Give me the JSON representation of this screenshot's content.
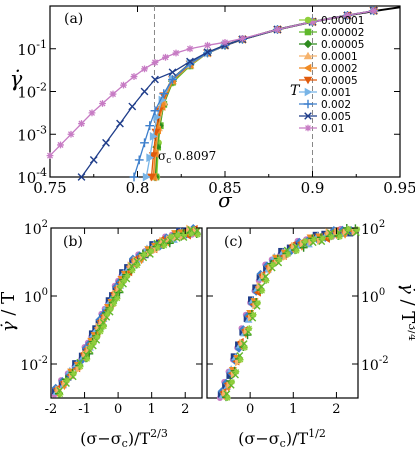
{
  "chart_data": [
    {
      "panel": "(a)",
      "type": "line",
      "xlabel": "σ",
      "ylabel": "γ̇",
      "xlim": [
        0.75,
        0.95
      ],
      "ylim_log10": [
        -4,
        0
      ],
      "y_scale": "log",
      "x_ticks": [
        "0.75",
        "0.8",
        "0.85",
        "0.9",
        "0.95"
      ],
      "y_ticks": [
        {
          "base": "10",
          "exp": "-4"
        },
        {
          "base": "10",
          "exp": "-3"
        },
        {
          "base": "10",
          "exp": "-2"
        },
        {
          "base": "10",
          "exp": "-1"
        }
      ],
      "dashed_vlines": [
        0.8097,
        0.9
      ],
      "annotation": {
        "symbol": "σ",
        "sub": "c",
        "value": "0.8097"
      },
      "legend_title": "T",
      "legend_position": "right",
      "fit_curve": {
        "color": "#000000",
        "points": [
          [
            0.8097,
            -4.0
          ],
          [
            0.811,
            -3.0
          ],
          [
            0.812,
            -2.6
          ],
          [
            0.815,
            -2.1
          ],
          [
            0.82,
            -1.7
          ],
          [
            0.83,
            -1.35
          ],
          [
            0.84,
            -1.1
          ],
          [
            0.85,
            -0.92
          ],
          [
            0.86,
            -0.78
          ],
          [
            0.88,
            -0.55
          ],
          [
            0.9,
            -0.37
          ],
          [
            0.92,
            -0.22
          ],
          [
            0.94,
            -0.09
          ],
          [
            0.95,
            -0.03
          ]
        ]
      },
      "series": [
        {
          "name": "0.00001",
          "color": "#8fcf3c",
          "marker": "circle",
          "points": [
            [
              0.811,
              -4.0
            ],
            [
              0.812,
              -3.2
            ],
            [
              0.813,
              -2.8
            ],
            [
              0.815,
              -2.3
            ],
            [
              0.82,
              -1.8
            ],
            [
              0.83,
              -1.4
            ],
            [
              0.84,
              -1.1
            ],
            [
              0.85,
              -0.92
            ],
            [
              0.86,
              -0.78
            ],
            [
              0.88,
              -0.55
            ],
            [
              0.9,
              -0.37
            ],
            [
              0.92,
              -0.22
            ],
            [
              0.935,
              -0.11
            ]
          ]
        },
        {
          "name": "0.00002",
          "color": "#5fb82c",
          "marker": "square",
          "points": [
            [
              0.8105,
              -4.0
            ],
            [
              0.8115,
              -3.3
            ],
            [
              0.813,
              -2.8
            ],
            [
              0.815,
              -2.3
            ],
            [
              0.82,
              -1.78
            ],
            [
              0.83,
              -1.4
            ],
            [
              0.84,
              -1.1
            ],
            [
              0.85,
              -0.92
            ],
            [
              0.86,
              -0.78
            ],
            [
              0.88,
              -0.55
            ],
            [
              0.9,
              -0.37
            ],
            [
              0.92,
              -0.22
            ],
            [
              0.935,
              -0.11
            ]
          ]
        },
        {
          "name": "0.00005",
          "color": "#2e8b1e",
          "marker": "diamond",
          "points": [
            [
              0.81,
              -4.0
            ],
            [
              0.811,
              -3.3
            ],
            [
              0.8125,
              -2.8
            ],
            [
              0.815,
              -2.3
            ],
            [
              0.82,
              -1.76
            ],
            [
              0.83,
              -1.38
            ],
            [
              0.84,
              -1.1
            ],
            [
              0.85,
              -0.92
            ],
            [
              0.86,
              -0.78
            ],
            [
              0.88,
              -0.55
            ],
            [
              0.9,
              -0.37
            ],
            [
              0.92,
              -0.22
            ],
            [
              0.935,
              -0.11
            ]
          ]
        },
        {
          "name": "0.0001",
          "color": "#f6b26b",
          "marker": "triangle-up",
          "points": [
            [
              0.8095,
              -4.0
            ],
            [
              0.8105,
              -3.4
            ],
            [
              0.812,
              -2.85
            ],
            [
              0.815,
              -2.25
            ],
            [
              0.82,
              -1.75
            ],
            [
              0.83,
              -1.38
            ],
            [
              0.84,
              -1.1
            ],
            [
              0.85,
              -0.92
            ],
            [
              0.86,
              -0.78
            ],
            [
              0.88,
              -0.55
            ],
            [
              0.9,
              -0.37
            ],
            [
              0.92,
              -0.22
            ],
            [
              0.935,
              -0.11
            ]
          ]
        },
        {
          "name": "0.0002",
          "color": "#f08a24",
          "marker": "triangle-left",
          "points": [
            [
              0.809,
              -4.0
            ],
            [
              0.81,
              -3.45
            ],
            [
              0.8115,
              -2.9
            ],
            [
              0.814,
              -2.35
            ],
            [
              0.82,
              -1.74
            ],
            [
              0.83,
              -1.37
            ],
            [
              0.84,
              -1.1
            ],
            [
              0.85,
              -0.92
            ],
            [
              0.86,
              -0.78
            ],
            [
              0.88,
              -0.55
            ],
            [
              0.9,
              -0.37
            ],
            [
              0.92,
              -0.22
            ],
            [
              0.935,
              -0.11
            ]
          ]
        },
        {
          "name": "0.0005",
          "color": "#e05a0c",
          "marker": "triangle-down",
          "points": [
            [
              0.808,
              -4.0
            ],
            [
              0.809,
              -3.5
            ],
            [
              0.8105,
              -2.95
            ],
            [
              0.8125,
              -2.45
            ],
            [
              0.815,
              -2.1
            ],
            [
              0.82,
              -1.72
            ],
            [
              0.83,
              -1.36
            ],
            [
              0.84,
              -1.1
            ],
            [
              0.85,
              -0.92
            ],
            [
              0.86,
              -0.78
            ],
            [
              0.88,
              -0.55
            ],
            [
              0.9,
              -0.37
            ],
            [
              0.92,
              -0.22
            ],
            [
              0.935,
              -0.11
            ]
          ]
        },
        {
          "name": "0.001",
          "color": "#78b4e6",
          "marker": "triangle-right",
          "points": [
            [
              0.805,
              -4.0
            ],
            [
              0.807,
              -3.55
            ],
            [
              0.809,
              -3.05
            ],
            [
              0.811,
              -2.6
            ],
            [
              0.814,
              -2.2
            ],
            [
              0.82,
              -1.7
            ],
            [
              0.83,
              -1.35
            ],
            [
              0.84,
              -1.1
            ],
            [
              0.85,
              -0.92
            ],
            [
              0.86,
              -0.78
            ],
            [
              0.88,
              -0.55
            ],
            [
              0.9,
              -0.37
            ],
            [
              0.92,
              -0.22
            ],
            [
              0.935,
              -0.11
            ]
          ]
        },
        {
          "name": "0.002",
          "color": "#3d7fcc",
          "marker": "plus",
          "points": [
            [
              0.798,
              -4.0
            ],
            [
              0.801,
              -3.6
            ],
            [
              0.804,
              -3.2
            ],
            [
              0.807,
              -2.8
            ],
            [
              0.81,
              -2.45
            ],
            [
              0.815,
              -2.05
            ],
            [
              0.82,
              -1.72
            ],
            [
              0.83,
              -1.35
            ],
            [
              0.84,
              -1.1
            ],
            [
              0.85,
              -0.92
            ],
            [
              0.86,
              -0.78
            ],
            [
              0.88,
              -0.55
            ],
            [
              0.9,
              -0.37
            ],
            [
              0.92,
              -0.22
            ],
            [
              0.935,
              -0.11
            ]
          ]
        },
        {
          "name": "0.005",
          "color": "#1f3d8a",
          "marker": "cross",
          "points": [
            [
              0.768,
              -4.0
            ],
            [
              0.775,
              -3.6
            ],
            [
              0.782,
              -3.2
            ],
            [
              0.79,
              -2.75
            ],
            [
              0.797,
              -2.35
            ],
            [
              0.804,
              -2.0
            ],
            [
              0.81,
              -1.72
            ],
            [
              0.82,
              -1.55
            ],
            [
              0.83,
              -1.3
            ],
            [
              0.84,
              -1.08
            ],
            [
              0.85,
              -0.92
            ],
            [
              0.86,
              -0.78
            ],
            [
              0.88,
              -0.55
            ],
            [
              0.9,
              -0.37
            ],
            [
              0.92,
              -0.22
            ],
            [
              0.935,
              -0.11
            ]
          ]
        },
        {
          "name": "0.01",
          "color": "#c77bc4",
          "marker": "star",
          "points": [
            [
              0.75,
              -3.5
            ],
            [
              0.756,
              -3.25
            ],
            [
              0.762,
              -3.0
            ],
            [
              0.768,
              -2.75
            ],
            [
              0.774,
              -2.5
            ],
            [
              0.78,
              -2.28
            ],
            [
              0.786,
              -2.06
            ],
            [
              0.792,
              -1.85
            ],
            [
              0.798,
              -1.65
            ],
            [
              0.804,
              -1.47
            ],
            [
              0.81,
              -1.32
            ],
            [
              0.816,
              -1.2
            ],
            [
              0.822,
              -1.1
            ],
            [
              0.83,
              -1.0
            ],
            [
              0.84,
              -0.92
            ],
            [
              0.85,
              -0.85
            ],
            [
              0.86,
              -0.76
            ],
            [
              0.88,
              -0.55
            ],
            [
              0.9,
              -0.37
            ],
            [
              0.92,
              -0.22
            ],
            [
              0.935,
              -0.11
            ]
          ]
        }
      ]
    },
    {
      "panel": "(b)",
      "type": "scatter",
      "xlabel": "(σ−σc)/T^{2/3}",
      "ylabel": "γ̇ / T",
      "xlim": [
        -2,
        2.5
      ],
      "ylim_log10": [
        -3,
        2
      ],
      "y_scale": "log",
      "x_ticks": [
        "-2",
        "-1",
        "0",
        "1",
        "2"
      ],
      "y_ticks": [
        {
          "base": "10",
          "exp": "-2"
        },
        {
          "base": "10",
          "exp": "0"
        },
        {
          "base": "10",
          "exp": "2"
        }
      ],
      "points": [
        [
          -1.8,
          -2.8
        ],
        [
          -1.6,
          -2.55
        ],
        [
          -1.4,
          -2.3
        ],
        [
          -1.2,
          -2.05
        ],
        [
          -1.0,
          -1.78
        ],
        [
          -0.9,
          -1.6
        ],
        [
          -0.8,
          -1.42
        ],
        [
          -0.7,
          -1.2
        ],
        [
          -0.6,
          -1.0
        ],
        [
          -0.5,
          -0.8
        ],
        [
          -0.4,
          -0.6
        ],
        [
          -0.3,
          -0.4
        ],
        [
          -0.2,
          -0.2
        ],
        [
          -0.1,
          0.0
        ],
        [
          0.0,
          0.2
        ],
        [
          0.1,
          0.4
        ],
        [
          0.2,
          0.6
        ],
        [
          0.35,
          0.8
        ],
        [
          0.5,
          1.0
        ],
        [
          0.7,
          1.15
        ],
        [
          0.9,
          1.3
        ],
        [
          1.1,
          1.45
        ],
        [
          1.3,
          1.55
        ],
        [
          1.5,
          1.65
        ],
        [
          1.7,
          1.75
        ],
        [
          1.9,
          1.82
        ],
        [
          2.1,
          1.88
        ],
        [
          2.3,
          1.9
        ]
      ],
      "colors": [
        "#c77bc4",
        "#1f3d8a",
        "#3d7fcc",
        "#78b4e6",
        "#e05a0c",
        "#f08a24",
        "#f6b26b",
        "#2e8b1e",
        "#5fb82c",
        "#8fcf3c"
      ]
    },
    {
      "panel": "(c)",
      "type": "scatter",
      "xlabel": "(σ−σc)/T^{1/2}",
      "ylabel": "γ̇ / T^{3/4}",
      "xlim": [
        -1,
        2.5
      ],
      "ylim_log10": [
        -3,
        2
      ],
      "y_scale": "log",
      "x_ticks": [
        "0",
        "1",
        "2"
      ],
      "y_ticks": [
        {
          "base": "10",
          "exp": "-2"
        },
        {
          "base": "10",
          "exp": "0"
        },
        {
          "base": "10",
          "exp": "2"
        }
      ],
      "points": [
        [
          -0.6,
          -2.9
        ],
        [
          -0.5,
          -2.6
        ],
        [
          -0.4,
          -2.25
        ],
        [
          -0.3,
          -1.85
        ],
        [
          -0.2,
          -1.45
        ],
        [
          -0.1,
          -1.05
        ],
        [
          0.0,
          -0.6
        ],
        [
          0.1,
          -0.2
        ],
        [
          0.2,
          0.2
        ],
        [
          0.3,
          0.55
        ],
        [
          0.45,
          0.85
        ],
        [
          0.6,
          1.05
        ],
        [
          0.8,
          1.25
        ],
        [
          1.0,
          1.4
        ],
        [
          1.2,
          1.52
        ],
        [
          1.4,
          1.62
        ],
        [
          1.6,
          1.7
        ],
        [
          1.8,
          1.78
        ],
        [
          2.0,
          1.84
        ],
        [
          2.2,
          1.9
        ],
        [
          2.4,
          1.94
        ]
      ],
      "colors": [
        "#c77bc4",
        "#1f3d8a",
        "#3d7fcc",
        "#78b4e6",
        "#e05a0c",
        "#f08a24",
        "#f6b26b",
        "#2e8b1e",
        "#5fb82c",
        "#8fcf3c"
      ]
    }
  ]
}
